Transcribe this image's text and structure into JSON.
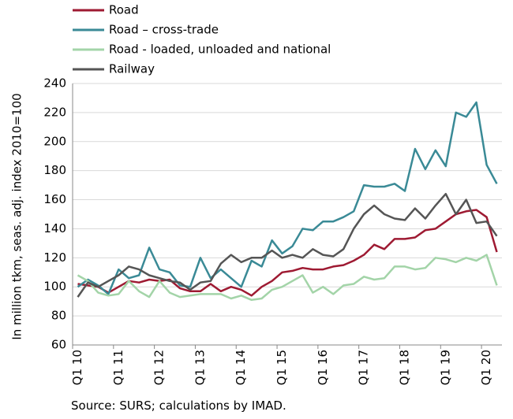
{
  "chart_data": {
    "type": "line",
    "ylabel": "In million tkm, seas. adj. index 2010=100",
    "source": "Source: SURS; calculations by IMAD.",
    "categories": [
      "Q1 10",
      null,
      null,
      null,
      "Q1 11",
      null,
      null,
      null,
      "Q1 12",
      null,
      null,
      null,
      "Q1 13",
      null,
      null,
      null,
      "Q1 14",
      null,
      null,
      null,
      "Q1 15",
      null,
      null,
      null,
      "Q1 16",
      null,
      null,
      null,
      "Q1 17",
      null,
      null,
      null,
      "Q1 18",
      null,
      null,
      null,
      "Q1 19",
      null,
      null,
      null,
      "Q1 20",
      null
    ],
    "series": [
      {
        "name": "Road",
        "color": "#9e1a32",
        "values": [
          102,
          101,
          100,
          96,
          100,
          104,
          103,
          105,
          104,
          105,
          99,
          97,
          97,
          102,
          97,
          100,
          98,
          94,
          100,
          104,
          110,
          111,
          113,
          112,
          112,
          114,
          115,
          118,
          122,
          129,
          126,
          133,
          133,
          134,
          139,
          140,
          145,
          150,
          152,
          153,
          148,
          124
        ]
      },
      {
        "name": "Road – cross-trade",
        "color": "#3a8a96",
        "values": [
          100,
          105,
          101,
          95,
          112,
          106,
          108,
          127,
          112,
          110,
          101,
          100,
          120,
          106,
          112,
          106,
          100,
          118,
          114,
          132,
          123,
          128,
          140,
          139,
          145,
          145,
          148,
          152,
          170,
          169,
          169,
          171,
          166,
          195,
          181,
          194,
          183,
          220,
          217,
          227,
          184,
          171
        ]
      },
      {
        "name": "Road - loaded, unloaded and national",
        "color": "#a3d4a8",
        "values": [
          108,
          104,
          96,
          94,
          95,
          104,
          97,
          93,
          104,
          96,
          93,
          94,
          95,
          95,
          95,
          92,
          94,
          91,
          92,
          98,
          100,
          104,
          108,
          96,
          100,
          95,
          101,
          102,
          107,
          105,
          106,
          114,
          114,
          112,
          113,
          120,
          119,
          117,
          120,
          118,
          122,
          101
        ]
      },
      {
        "name": "Railway",
        "color": "#555555",
        "values": [
          93,
          103,
          100,
          104,
          108,
          114,
          112,
          108,
          106,
          104,
          103,
          98,
          103,
          104,
          116,
          122,
          117,
          120,
          120,
          125,
          120,
          122,
          120,
          126,
          122,
          121,
          126,
          140,
          150,
          156,
          150,
          147,
          146,
          154,
          147,
          156,
          164,
          150,
          160,
          144,
          145,
          135
        ]
      }
    ],
    "ylim": [
      60,
      240
    ],
    "yticks": [
      60,
      80,
      100,
      120,
      140,
      160,
      180,
      200,
      220,
      240
    ],
    "grid": true
  }
}
